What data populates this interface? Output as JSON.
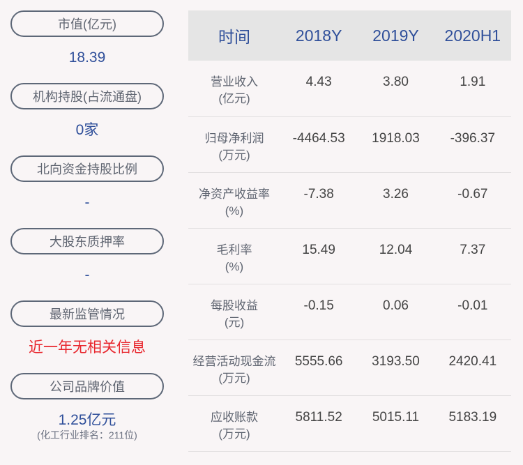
{
  "left": [
    {
      "label": "市值(亿元)",
      "value": "18.39"
    },
    {
      "label": "机构持股(占流通盘)",
      "value": "0家"
    },
    {
      "label": "北向资金持股比例",
      "value": "-"
    },
    {
      "label": "大股东质押率",
      "value": "-"
    },
    {
      "label": "最新监管情况",
      "value": "近一年无相关信息",
      "highlight_color": "#e8262d"
    },
    {
      "label": "公司品牌价值",
      "value": "1.25亿元",
      "note": "(化工行业排名：211位)"
    }
  ],
  "table": {
    "headers": [
      "时间",
      "2018Y",
      "2019Y",
      "2020H1"
    ],
    "rows": [
      {
        "label": "营业收入",
        "unit": "(亿元)",
        "values": [
          "4.43",
          "3.80",
          "1.91"
        ]
      },
      {
        "label": "归母净利润",
        "unit": "(万元)",
        "values": [
          "-4464.53",
          "1918.03",
          "-396.37"
        ]
      },
      {
        "label": "净资产收益率",
        "unit": "(%)",
        "values": [
          "-7.38",
          "3.26",
          "-0.67"
        ]
      },
      {
        "label": "毛利率",
        "unit": "(%)",
        "values": [
          "15.49",
          "12.04",
          "7.37"
        ]
      },
      {
        "label": "每股收益",
        "unit": "(元)",
        "values": [
          "-0.15",
          "0.06",
          "-0.01"
        ]
      },
      {
        "label": "经营活动现金流",
        "unit": "(万元)",
        "values": [
          "5555.66",
          "3193.50",
          "2420.41"
        ]
      },
      {
        "label": "应收账款",
        "unit": "(万元)",
        "values": [
          "5811.52",
          "5015.11",
          "5183.19"
        ]
      }
    ]
  },
  "colors": {
    "accent": "#2f4f9a",
    "alert": "#e8262d",
    "header_bg": "#e5e5e5",
    "page_bg": "#f9f5f6"
  }
}
